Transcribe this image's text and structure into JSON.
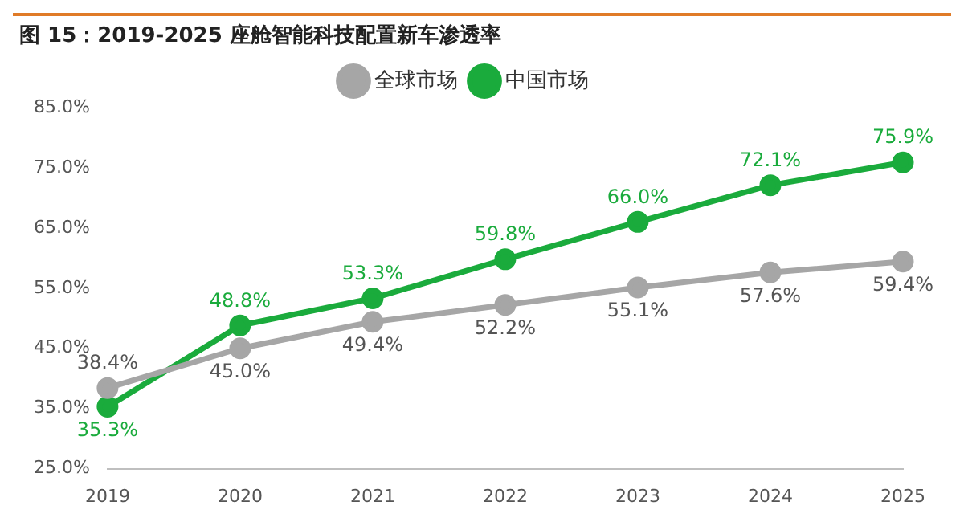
{
  "chart_data": {
    "type": "line",
    "title": "图 15：2019-2025 座舱智能科技配置新车渗透率",
    "categories": [
      "2019",
      "2020",
      "2021",
      "2022",
      "2023",
      "2024",
      "2025"
    ],
    "series": [
      {
        "name": "全球市场",
        "color": "#a6a6a6",
        "values": [
          38.4,
          45.0,
          49.4,
          52.2,
          55.1,
          57.6,
          59.4
        ],
        "value_labels": [
          "38.4%",
          "45.0%",
          "49.4%",
          "52.2%",
          "55.1%",
          "57.6%",
          "59.4%"
        ]
      },
      {
        "name": "中国市场",
        "color": "#1aab3c",
        "values": [
          35.3,
          48.8,
          53.3,
          59.8,
          66.0,
          72.1,
          75.9
        ],
        "value_labels": [
          "35.3%",
          "48.8%",
          "53.3%",
          "59.8%",
          "66.0%",
          "72.1%",
          "75.9%"
        ]
      }
    ],
    "ylim": [
      25,
      85
    ],
    "yticks": [
      {
        "value": 25,
        "label": "25.0%"
      },
      {
        "value": 35,
        "label": "35.0%"
      },
      {
        "value": 45,
        "label": "45.0%"
      },
      {
        "value": 55,
        "label": "55.0%"
      },
      {
        "value": 65,
        "label": "65.0%"
      },
      {
        "value": 75,
        "label": "75.0%"
      },
      {
        "value": 85,
        "label": "85.0%"
      }
    ],
    "grid": false,
    "legend": "top",
    "marker": "circle",
    "line_style": "solid"
  }
}
